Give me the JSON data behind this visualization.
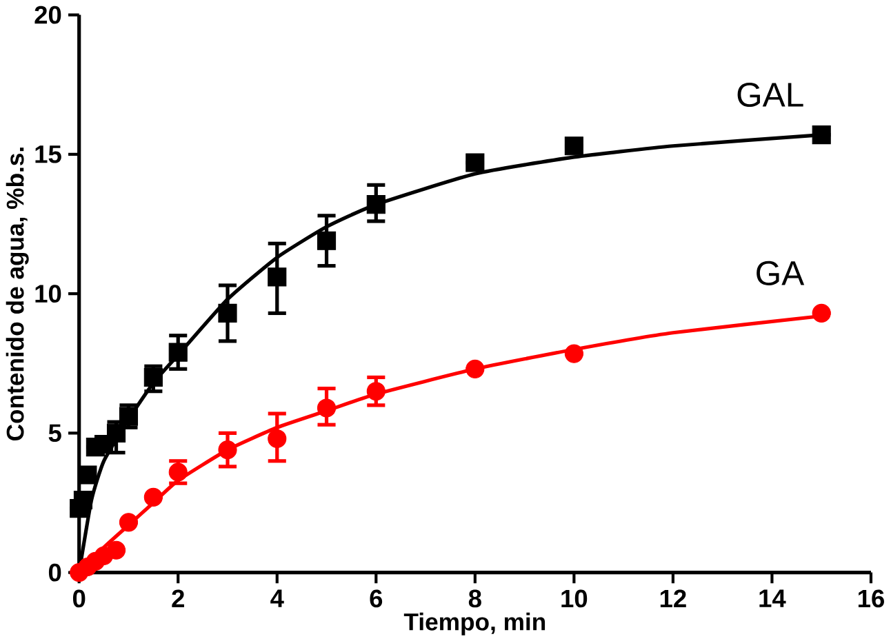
{
  "chart_data": {
    "type": "scatter",
    "xlabel": "Tiempo, min",
    "ylabel": "Contenido de agua, %b.s.",
    "xlim": [
      0,
      16
    ],
    "ylim": [
      0,
      20
    ],
    "xticks": [
      0,
      2,
      4,
      6,
      8,
      10,
      12,
      14,
      16
    ],
    "yticks": [
      0,
      5,
      10,
      15,
      20
    ],
    "grid": false,
    "legend": "right",
    "series": [
      {
        "name": "GAL",
        "color": "#000000",
        "marker": "square",
        "x": [
          0,
          0.08,
          0.17,
          0.33,
          0.5,
          0.75,
          1,
          1.5,
          2,
          3,
          4,
          5,
          6,
          8,
          10,
          15
        ],
        "values": [
          2.3,
          2.6,
          3.5,
          4.5,
          4.6,
          5.0,
          5.6,
          7.0,
          7.9,
          9.3,
          10.6,
          11.9,
          13.2,
          14.7,
          15.3,
          15.7
        ],
        "errors": [
          null,
          null,
          null,
          null,
          null,
          [
            4.3,
            5.4
          ],
          [
            5.2,
            6.0
          ],
          [
            6.5,
            7.4
          ],
          [
            7.3,
            8.5
          ],
          [
            8.3,
            10.3
          ],
          [
            9.3,
            11.8
          ],
          [
            11.0,
            12.8
          ],
          [
            12.6,
            13.9
          ],
          null,
          null,
          null
        ]
      },
      {
        "name": "GA",
        "color": "#ff0000",
        "marker": "circle",
        "x": [
          0,
          0.17,
          0.33,
          0.5,
          0.75,
          1,
          1.5,
          2,
          3,
          4,
          5,
          6,
          8,
          10,
          15
        ],
        "values": [
          0,
          0.2,
          0.4,
          0.6,
          0.8,
          1.8,
          2.7,
          3.6,
          4.4,
          4.8,
          5.9,
          6.5,
          7.3,
          7.85,
          9.3
        ],
        "errors": [
          null,
          null,
          null,
          null,
          null,
          null,
          null,
          [
            3.2,
            4.0
          ],
          [
            3.8,
            5.0
          ],
          [
            4.0,
            5.7
          ],
          [
            5.3,
            6.6
          ],
          [
            6.0,
            7.0
          ],
          null,
          null,
          null
        ]
      },
      {
        "type": "line",
        "color": "#000000",
        "x": [
          0,
          0.25,
          0.5,
          1,
          1.5,
          2,
          3,
          4,
          5,
          6,
          8,
          10,
          12,
          15
        ],
        "values": [
          0,
          2.6,
          4.0,
          5.5,
          6.8,
          7.8,
          9.8,
          11.3,
          12.4,
          13.2,
          14.3,
          14.9,
          15.3,
          15.7
        ]
      },
      {
        "type": "line",
        "color": "#ff0000",
        "x": [
          0,
          0.5,
          1,
          1.5,
          2,
          3,
          4,
          5,
          6,
          8,
          10,
          12,
          15
        ],
        "values": [
          0,
          0.9,
          1.7,
          2.5,
          3.3,
          4.4,
          5.2,
          5.8,
          6.4,
          7.3,
          8.0,
          8.6,
          9.2
        ]
      }
    ]
  }
}
